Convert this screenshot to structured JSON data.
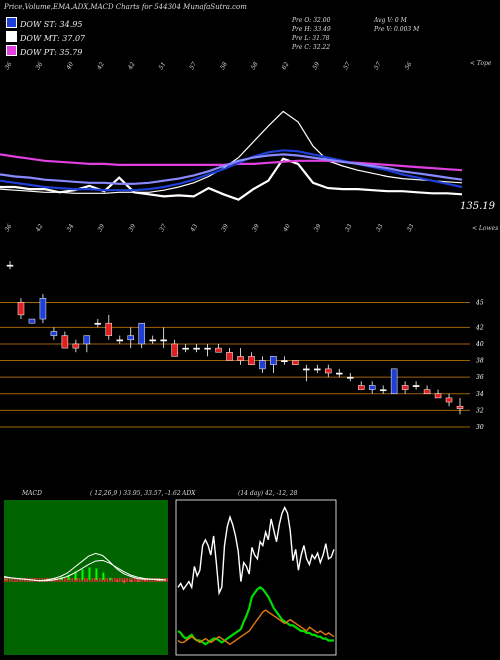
{
  "header": {
    "title": "Price,Volume,EMA,ADX,MACD Charts for 544304 MunafaSutra.com"
  },
  "legend": [
    {
      "label": "DOW ST: 34.95",
      "color": "#1f3fd6"
    },
    {
      "label": "DOW MT: 37.07",
      "color": "#ffffff"
    },
    {
      "label": "DOW PT: 35.79",
      "color": "#e040e0"
    }
  ],
  "stats": {
    "open": "Pre   O: 32.00",
    "high": "Pre   H: 33.49",
    "low": "Pre   L: 31.78",
    "close": "Pre   C: 32.22",
    "avg_volume": "Avg V: 0   M",
    "prev_volume": "Pre   V: 0.003 M"
  },
  "chart_data": [
    {
      "type": "line",
      "name": "price-ema-panel",
      "top_label": "< Tope",
      "bottom_label": "< Lowes",
      "price_label": "135.19",
      "top_ticks": [
        "36",
        "36",
        "40",
        "42",
        "42",
        "51",
        "57",
        "58",
        "58",
        "62",
        "59",
        "57",
        "57",
        "56"
      ],
      "bottom_ticks": [
        "36",
        "42",
        "34",
        "39",
        "39",
        "37",
        "43",
        "39",
        "39",
        "40",
        "39",
        "33",
        "33",
        "33"
      ],
      "series": [
        {
          "color": "#ffffff",
          "values": [
            60,
            60,
            58,
            58,
            55,
            57,
            61,
            56,
            69,
            55,
            53,
            51,
            52,
            51,
            59,
            53,
            48,
            58,
            66,
            87,
            82,
            64,
            59,
            58,
            58,
            57,
            56,
            56,
            55,
            54,
            54,
            53
          ]
        },
        {
          "color": "#ffffff",
          "values": [
            58,
            57,
            56,
            55,
            55,
            54,
            54,
            54,
            55,
            55,
            55,
            57,
            60,
            64,
            70,
            78,
            88,
            103,
            118,
            132,
            122,
            99,
            85,
            80,
            76,
            73,
            70,
            68,
            67,
            66,
            65,
            64
          ]
        },
        {
          "color": "#e040e0",
          "values": [
            91,
            89,
            87,
            85,
            84,
            83,
            82,
            82,
            81,
            81,
            81,
            81,
            81,
            81,
            81,
            81,
            82,
            82,
            83,
            84,
            85,
            85,
            85,
            84,
            83,
            82,
            81,
            80,
            79,
            78,
            77,
            76
          ]
        },
        {
          "color": "#1f3fd6",
          "values": [
            66,
            64,
            62,
            60,
            59,
            58,
            58,
            57,
            57,
            57,
            58,
            60,
            63,
            67,
            72,
            77,
            83,
            89,
            93,
            95,
            94,
            91,
            88,
            85,
            82,
            79,
            76,
            72,
            69,
            66,
            63,
            60
          ]
        },
        {
          "color": "#8888ff",
          "values": [
            72,
            70,
            69,
            67,
            66,
            65,
            64,
            64,
            63,
            63,
            64,
            66,
            68,
            71,
            75,
            80,
            85,
            88,
            90,
            91,
            90,
            88,
            86,
            84,
            82,
            80,
            78,
            75,
            73,
            71,
            69,
            67
          ]
        }
      ]
    },
    {
      "type": "candlestick",
      "name": "price-panel",
      "levels": [
        "45",
        "42",
        "40",
        "38",
        "36",
        "34",
        "32",
        "30"
      ],
      "candles": [
        {
          "o": 49.5,
          "h": 50,
          "l": 49,
          "c": 49.5
        },
        {
          "o": 45,
          "h": 45.5,
          "l": 43,
          "c": 43.5
        },
        {
          "o": 42.5,
          "h": 43,
          "l": 42.5,
          "c": 43
        },
        {
          "o": 43,
          "h": 46,
          "l": 42.5,
          "c": 45.5
        },
        {
          "o": 41,
          "h": 42,
          "l": 40.5,
          "c": 41.5
        },
        {
          "o": 41,
          "h": 41.5,
          "l": 39.5,
          "c": 39.5
        },
        {
          "o": 40,
          "h": 40.5,
          "l": 39,
          "c": 39.5
        },
        {
          "o": 40,
          "h": 41,
          "l": 39,
          "c": 41
        },
        {
          "o": 42.5,
          "h": 43,
          "l": 42,
          "c": 42.5
        },
        {
          "o": 42.5,
          "h": 43.5,
          "l": 40.5,
          "c": 41
        },
        {
          "o": 40.5,
          "h": 41,
          "l": 40,
          "c": 40.5
        },
        {
          "o": 40.5,
          "h": 42,
          "l": 39.5,
          "c": 41
        },
        {
          "o": 40,
          "h": 42.5,
          "l": 39.5,
          "c": 42.5
        },
        {
          "o": 40.5,
          "h": 41,
          "l": 40,
          "c": 40.5
        },
        {
          "o": 40.5,
          "h": 42,
          "l": 39.5,
          "c": 40.5
        },
        {
          "o": 40,
          "h": 40.5,
          "l": 38.5,
          "c": 38.5
        },
        {
          "o": 39.5,
          "h": 40,
          "l": 39,
          "c": 39.5
        },
        {
          "o": 39.5,
          "h": 40,
          "l": 39,
          "c": 39.5
        },
        {
          "o": 39.5,
          "h": 40,
          "l": 38.5,
          "c": 39.5
        },
        {
          "o": 39.5,
          "h": 40,
          "l": 39,
          "c": 39
        },
        {
          "o": 39,
          "h": 39.5,
          "l": 38,
          "c": 38
        },
        {
          "o": 38.5,
          "h": 39.5,
          "l": 37.5,
          "c": 38
        },
        {
          "o": 38.5,
          "h": 39,
          "l": 37.5,
          "c": 37.5
        },
        {
          "o": 37,
          "h": 38.5,
          "l": 36.5,
          "c": 38
        },
        {
          "o": 37.5,
          "h": 38.5,
          "l": 36.5,
          "c": 38.5
        },
        {
          "o": 38,
          "h": 38.5,
          "l": 37.5,
          "c": 38
        },
        {
          "o": 38,
          "h": 38,
          "l": 37.5,
          "c": 37.5
        },
        {
          "o": 37,
          "h": 37.5,
          "l": 35.5,
          "c": 37
        },
        {
          "o": 37,
          "h": 37.5,
          "l": 36.5,
          "c": 37
        },
        {
          "o": 37,
          "h": 37.5,
          "l": 36,
          "c": 36.5
        },
        {
          "o": 36.5,
          "h": 37,
          "l": 36,
          "c": 36.5
        },
        {
          "o": 36,
          "h": 36.5,
          "l": 35.5,
          "c": 36
        },
        {
          "o": 35,
          "h": 35.5,
          "l": 34.5,
          "c": 34.5
        },
        {
          "o": 34.5,
          "h": 35.5,
          "l": 34,
          "c": 35
        },
        {
          "o": 34.5,
          "h": 35,
          "l": 34,
          "c": 34.5
        },
        {
          "o": 34,
          "h": 37,
          "l": 34,
          "c": 37
        },
        {
          "o": 35,
          "h": 35.5,
          "l": 34,
          "c": 34.5
        },
        {
          "o": 35,
          "h": 35.5,
          "l": 34.5,
          "c": 35
        },
        {
          "o": 34.5,
          "h": 35,
          "l": 34,
          "c": 34
        },
        {
          "o": 34,
          "h": 34.5,
          "l": 33.5,
          "c": 33.5
        },
        {
          "o": 33.5,
          "h": 34,
          "l": 32.5,
          "c": 33
        },
        {
          "o": 32.5,
          "h": 33.5,
          "l": 31.5,
          "c": 32.2
        }
      ],
      "candle_colors": {
        "up": "#1f3fd6",
        "down": "#e02020",
        "neutral": "#ffffff"
      }
    },
    {
      "type": "line",
      "name": "macd-panel",
      "title": "MACD",
      "params": "( 12,26,9 ) 33.95, 33.57, -1.62",
      "series": [
        {
          "color": "#ffffff",
          "values": [
            0.5,
            0.3,
            0.2,
            0.1,
            0,
            -0.1,
            0,
            0.2,
            0.5,
            1,
            1.8,
            2.6,
            3.4,
            3.8,
            3.5,
            2.6,
            1.6,
            0.9,
            0.5,
            0.2,
            0.1,
            0.1,
            0,
            0
          ]
        },
        {
          "color": "#ffffff",
          "values": [
            0.4,
            0.3,
            0.2,
            0.1,
            0,
            -0.1,
            -0.1,
            0,
            0.2,
            0.5,
            1,
            1.6,
            2.2,
            2.7,
            2.8,
            2.4,
            1.8,
            1.2,
            0.7,
            0.4,
            0.2,
            0.1,
            0.1,
            0
          ]
        }
      ],
      "histogram": [
        0.1,
        0,
        0,
        0,
        0,
        0,
        0.1,
        0.2,
        0.3,
        0.5,
        0.8,
        1,
        1.2,
        1.1,
        0.7,
        0.2,
        -0.2,
        -0.3,
        -0.2,
        -0.2,
        -0.1,
        0,
        -0.1,
        0
      ]
    },
    {
      "type": "line",
      "name": "adx-panel",
      "title": "ADX",
      "params": "(14 day) 42, -12, 28",
      "series": [
        {
          "color": "#ffffff",
          "values": [
            33,
            35,
            32,
            34,
            36,
            33,
            44,
            39,
            42,
            55,
            58,
            55,
            50,
            60,
            46,
            30,
            33,
            55,
            65,
            70,
            66,
            60,
            52,
            36,
            46,
            44,
            40,
            54,
            50,
            48,
            57,
            55,
            62,
            58,
            69,
            63,
            57,
            66,
            72,
            75,
            72,
            63,
            47,
            53,
            42,
            50,
            55,
            48,
            45,
            50,
            48,
            51,
            46,
            50,
            56,
            48,
            49,
            53
          ]
        },
        {
          "color": "#00dd00",
          "values": [
            10,
            9,
            7,
            6,
            7,
            8,
            6,
            5,
            5,
            4,
            3,
            4,
            5,
            6,
            6,
            5,
            4,
            5,
            6,
            7,
            8,
            9,
            10,
            11,
            15,
            18,
            22,
            28,
            30,
            32,
            33,
            32,
            30,
            28,
            25,
            22,
            20,
            18,
            16,
            15,
            14,
            13,
            13,
            12,
            11,
            10,
            10,
            9,
            9,
            8,
            8,
            7,
            7,
            6,
            6,
            5,
            5,
            5
          ]
        },
        {
          "color": "#e07a10",
          "values": [
            5,
            4,
            4,
            5,
            6,
            7,
            6,
            5,
            4,
            5,
            6,
            5,
            4,
            5,
            6,
            7,
            6,
            5,
            4,
            3,
            4,
            5,
            6,
            7,
            8,
            9,
            10,
            12,
            14,
            16,
            18,
            20,
            21,
            20,
            19,
            18,
            17,
            16,
            15,
            14,
            15,
            16,
            15,
            14,
            13,
            12,
            11,
            10,
            12,
            11,
            10,
            9,
            10,
            9,
            8,
            9,
            8,
            7
          ]
        }
      ]
    }
  ]
}
